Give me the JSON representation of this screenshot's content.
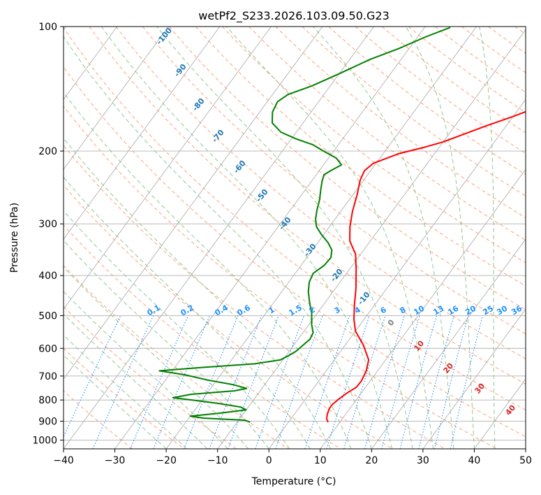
{
  "chart_data": {
    "type": "line",
    "title": "wetPf2_S233.2026.103.09.50.G23",
    "xlabel": "Temperature (°C)",
    "ylabel": "Pressure (hPa)",
    "xlim": [
      -40,
      50
    ],
    "ylim": [
      1050,
      100
    ],
    "y_scale": "log",
    "grid": true,
    "x_ticks": [
      "−40",
      "−30",
      "−20",
      "−10",
      "0",
      "10",
      "20",
      "30",
      "40",
      "50"
    ],
    "y_ticks": [
      "100",
      "200",
      "300",
      "400",
      "500",
      "600",
      "700",
      "800",
      "900",
      "1000"
    ],
    "series": [
      {
        "name": "temperature",
        "color": "#ff0000",
        "points": [
          [
            7.7,
            905
          ],
          [
            7,
            890
          ],
          [
            6.5,
            870
          ],
          [
            6,
            840
          ],
          [
            6,
            820
          ],
          [
            6.4,
            800
          ],
          [
            7.2,
            770
          ],
          [
            8.2,
            745
          ],
          [
            8.3,
            720
          ],
          [
            7.8,
            680
          ],
          [
            6.7,
            640
          ],
          [
            3.6,
            590
          ],
          [
            0,
            545
          ],
          [
            -2,
            510
          ],
          [
            -4,
            470
          ],
          [
            -6,
            430
          ],
          [
            -8.8,
            385
          ],
          [
            -11,
            355
          ],
          [
            -14,
            330
          ],
          [
            -16,
            305
          ],
          [
            -17.7,
            280
          ],
          [
            -19.2,
            255
          ],
          [
            -20.7,
            235
          ],
          [
            -21.2,
            223
          ],
          [
            -20.5,
            214
          ],
          [
            -17,
            203
          ],
          [
            -13,
            196
          ],
          [
            -10,
            190
          ],
          [
            -7.4,
            183
          ],
          [
            -4,
            174
          ],
          [
            0,
            165
          ],
          [
            5,
            153
          ],
          [
            10,
            141
          ],
          [
            15,
            131
          ],
          [
            20,
            120
          ],
          [
            23,
            113
          ],
          [
            27,
            107
          ],
          [
            30,
            100.5
          ]
        ]
      },
      {
        "name": "dewpoint",
        "color": "#008000",
        "points": [
          [
            -7.5,
            905
          ],
          [
            -8.8,
            895
          ],
          [
            -17,
            885
          ],
          [
            -20,
            875
          ],
          [
            -15,
            862
          ],
          [
            -10,
            845
          ],
          [
            -11.5,
            832
          ],
          [
            -16.5,
            815
          ],
          [
            -22,
            800
          ],
          [
            -26,
            790
          ],
          [
            -23,
            775
          ],
          [
            -15,
            760
          ],
          [
            -13,
            750
          ],
          [
            -16,
            735
          ],
          [
            -22,
            715
          ],
          [
            -27,
            695
          ],
          [
            -32.5,
            680
          ],
          [
            -25,
            668
          ],
          [
            -15,
            654
          ],
          [
            -10.5,
            640
          ],
          [
            -9.5,
            625
          ],
          [
            -8.7,
            610
          ],
          [
            -8.2,
            590
          ],
          [
            -7.7,
            570
          ],
          [
            -8,
            550
          ],
          [
            -9.5,
            525
          ],
          [
            -11,
            495
          ],
          [
            -13,
            465
          ],
          [
            -14.8,
            438
          ],
          [
            -16,
            415
          ],
          [
            -16.5,
            395
          ],
          [
            -15.5,
            378
          ],
          [
            -15.3,
            362
          ],
          [
            -16.2,
            347
          ],
          [
            -18,
            333
          ],
          [
            -20.5,
            318
          ],
          [
            -22.5,
            305
          ],
          [
            -23.8,
            292
          ],
          [
            -24.8,
            278
          ],
          [
            -25.8,
            262
          ],
          [
            -27,
            248
          ],
          [
            -28,
            236
          ],
          [
            -28.5,
            228
          ],
          [
            -27.6,
            222
          ],
          [
            -26.5,
            216
          ],
          [
            -28.5,
            208
          ],
          [
            -32,
            200
          ],
          [
            -35,
            193
          ],
          [
            -39,
            187
          ],
          [
            -43,
            180
          ],
          [
            -46,
            171
          ],
          [
            -47.5,
            161
          ],
          [
            -48,
            152
          ],
          [
            -47,
            146
          ],
          [
            -43.5,
            139
          ],
          [
            -40,
            130
          ],
          [
            -36,
            120
          ],
          [
            -32,
            113
          ],
          [
            -28.5,
            106
          ],
          [
            -25,
            100.5
          ]
        ]
      }
    ],
    "isotherm_labels": [
      "-100",
      "-90",
      "-80",
      "-70",
      "-60",
      "-50",
      "-40",
      "-30",
      "-20",
      "-10",
      "0",
      "10",
      "20",
      "30",
      "40"
    ],
    "mixing_ratio_labels": [
      "0.1",
      "0.2",
      "0.4",
      "0.6",
      "1",
      "1.5",
      "2",
      "3",
      "4",
      "6",
      "8",
      "10",
      "13",
      "16",
      "20",
      "25",
      "30",
      "36"
    ],
    "colors": {
      "isotherm_neg": "#1f77b4",
      "isotherm_zero": "#808080",
      "isotherm_pos": "#d62728",
      "mixing_ratio": "#1e90ff",
      "dry_adiabat": "#ffa07a",
      "moist_adiabat": "#90c890",
      "grid": "#b0b0b0"
    }
  }
}
